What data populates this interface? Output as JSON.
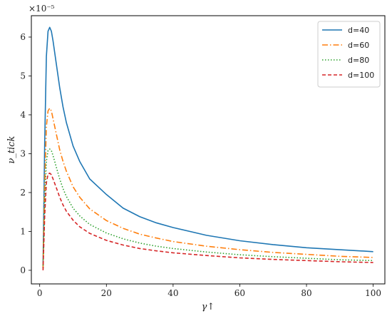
{
  "chart_data": {
    "type": "line",
    "title": "",
    "xlabel": "γ↑",
    "ylabel": "ν_tick",
    "y_multiplier_label": "×10⁻⁵",
    "xlim": [
      -2.5,
      103.5
    ],
    "ylim": [
      -0.35,
      6.55
    ],
    "x_ticks": [
      0,
      20,
      40,
      60,
      80,
      100
    ],
    "y_ticks": [
      0,
      1,
      2,
      3,
      4,
      5,
      6
    ],
    "grid": false,
    "legend_position": "top-right",
    "series": [
      {
        "name": "d=40",
        "color": "#1f77b4",
        "dash": "solid",
        "x": [
          1,
          1.5,
          2,
          2.5,
          3,
          3.5,
          4,
          5,
          6,
          7,
          8,
          10,
          12,
          15,
          20,
          25,
          30,
          35,
          40,
          50,
          60,
          70,
          80,
          90,
          100
        ],
        "y": [
          0.1,
          3.3,
          5.5,
          6.15,
          6.25,
          6.15,
          5.9,
          5.3,
          4.7,
          4.2,
          3.8,
          3.2,
          2.8,
          2.35,
          1.95,
          1.6,
          1.38,
          1.22,
          1.1,
          0.9,
          0.76,
          0.66,
          0.58,
          0.53,
          0.48
        ]
      },
      {
        "name": "d=60",
        "color": "#ff7f0e",
        "dash": "dashdot",
        "x": [
          1,
          1.5,
          2,
          2.5,
          3,
          3.5,
          4,
          5,
          6,
          7,
          8,
          10,
          12,
          15,
          20,
          25,
          30,
          35,
          40,
          50,
          60,
          70,
          80,
          90,
          100
        ],
        "y": [
          0.05,
          2.2,
          3.7,
          4.1,
          4.17,
          4.1,
          3.9,
          3.5,
          3.1,
          2.8,
          2.55,
          2.15,
          1.88,
          1.58,
          1.28,
          1.08,
          0.93,
          0.83,
          0.74,
          0.62,
          0.53,
          0.46,
          0.41,
          0.36,
          0.33
        ]
      },
      {
        "name": "d=80",
        "color": "#2ca02c",
        "dash": "dotted",
        "x": [
          1,
          1.5,
          2,
          2.5,
          3,
          3.5,
          4,
          5,
          6,
          7,
          8,
          10,
          12,
          15,
          20,
          25,
          30,
          35,
          40,
          50,
          60,
          70,
          80,
          90,
          100
        ],
        "y": [
          0.05,
          1.7,
          2.8,
          3.08,
          3.12,
          3.08,
          2.95,
          2.65,
          2.35,
          2.1,
          1.9,
          1.6,
          1.4,
          1.18,
          0.96,
          0.81,
          0.7,
          0.62,
          0.56,
          0.47,
          0.4,
          0.35,
          0.31,
          0.27,
          0.25
        ]
      },
      {
        "name": "d=100",
        "color": "#d62728",
        "dash": "dashed",
        "x": [
          1,
          1.5,
          2,
          2.5,
          3,
          3.5,
          4,
          5,
          6,
          7,
          8,
          10,
          12,
          15,
          20,
          25,
          30,
          35,
          40,
          50,
          60,
          70,
          80,
          90,
          100
        ],
        "y": [
          0.0,
          1.4,
          2.25,
          2.47,
          2.5,
          2.46,
          2.35,
          2.12,
          1.88,
          1.68,
          1.52,
          1.29,
          1.12,
          0.95,
          0.77,
          0.65,
          0.56,
          0.5,
          0.45,
          0.38,
          0.32,
          0.28,
          0.25,
          0.22,
          0.2
        ]
      }
    ]
  }
}
